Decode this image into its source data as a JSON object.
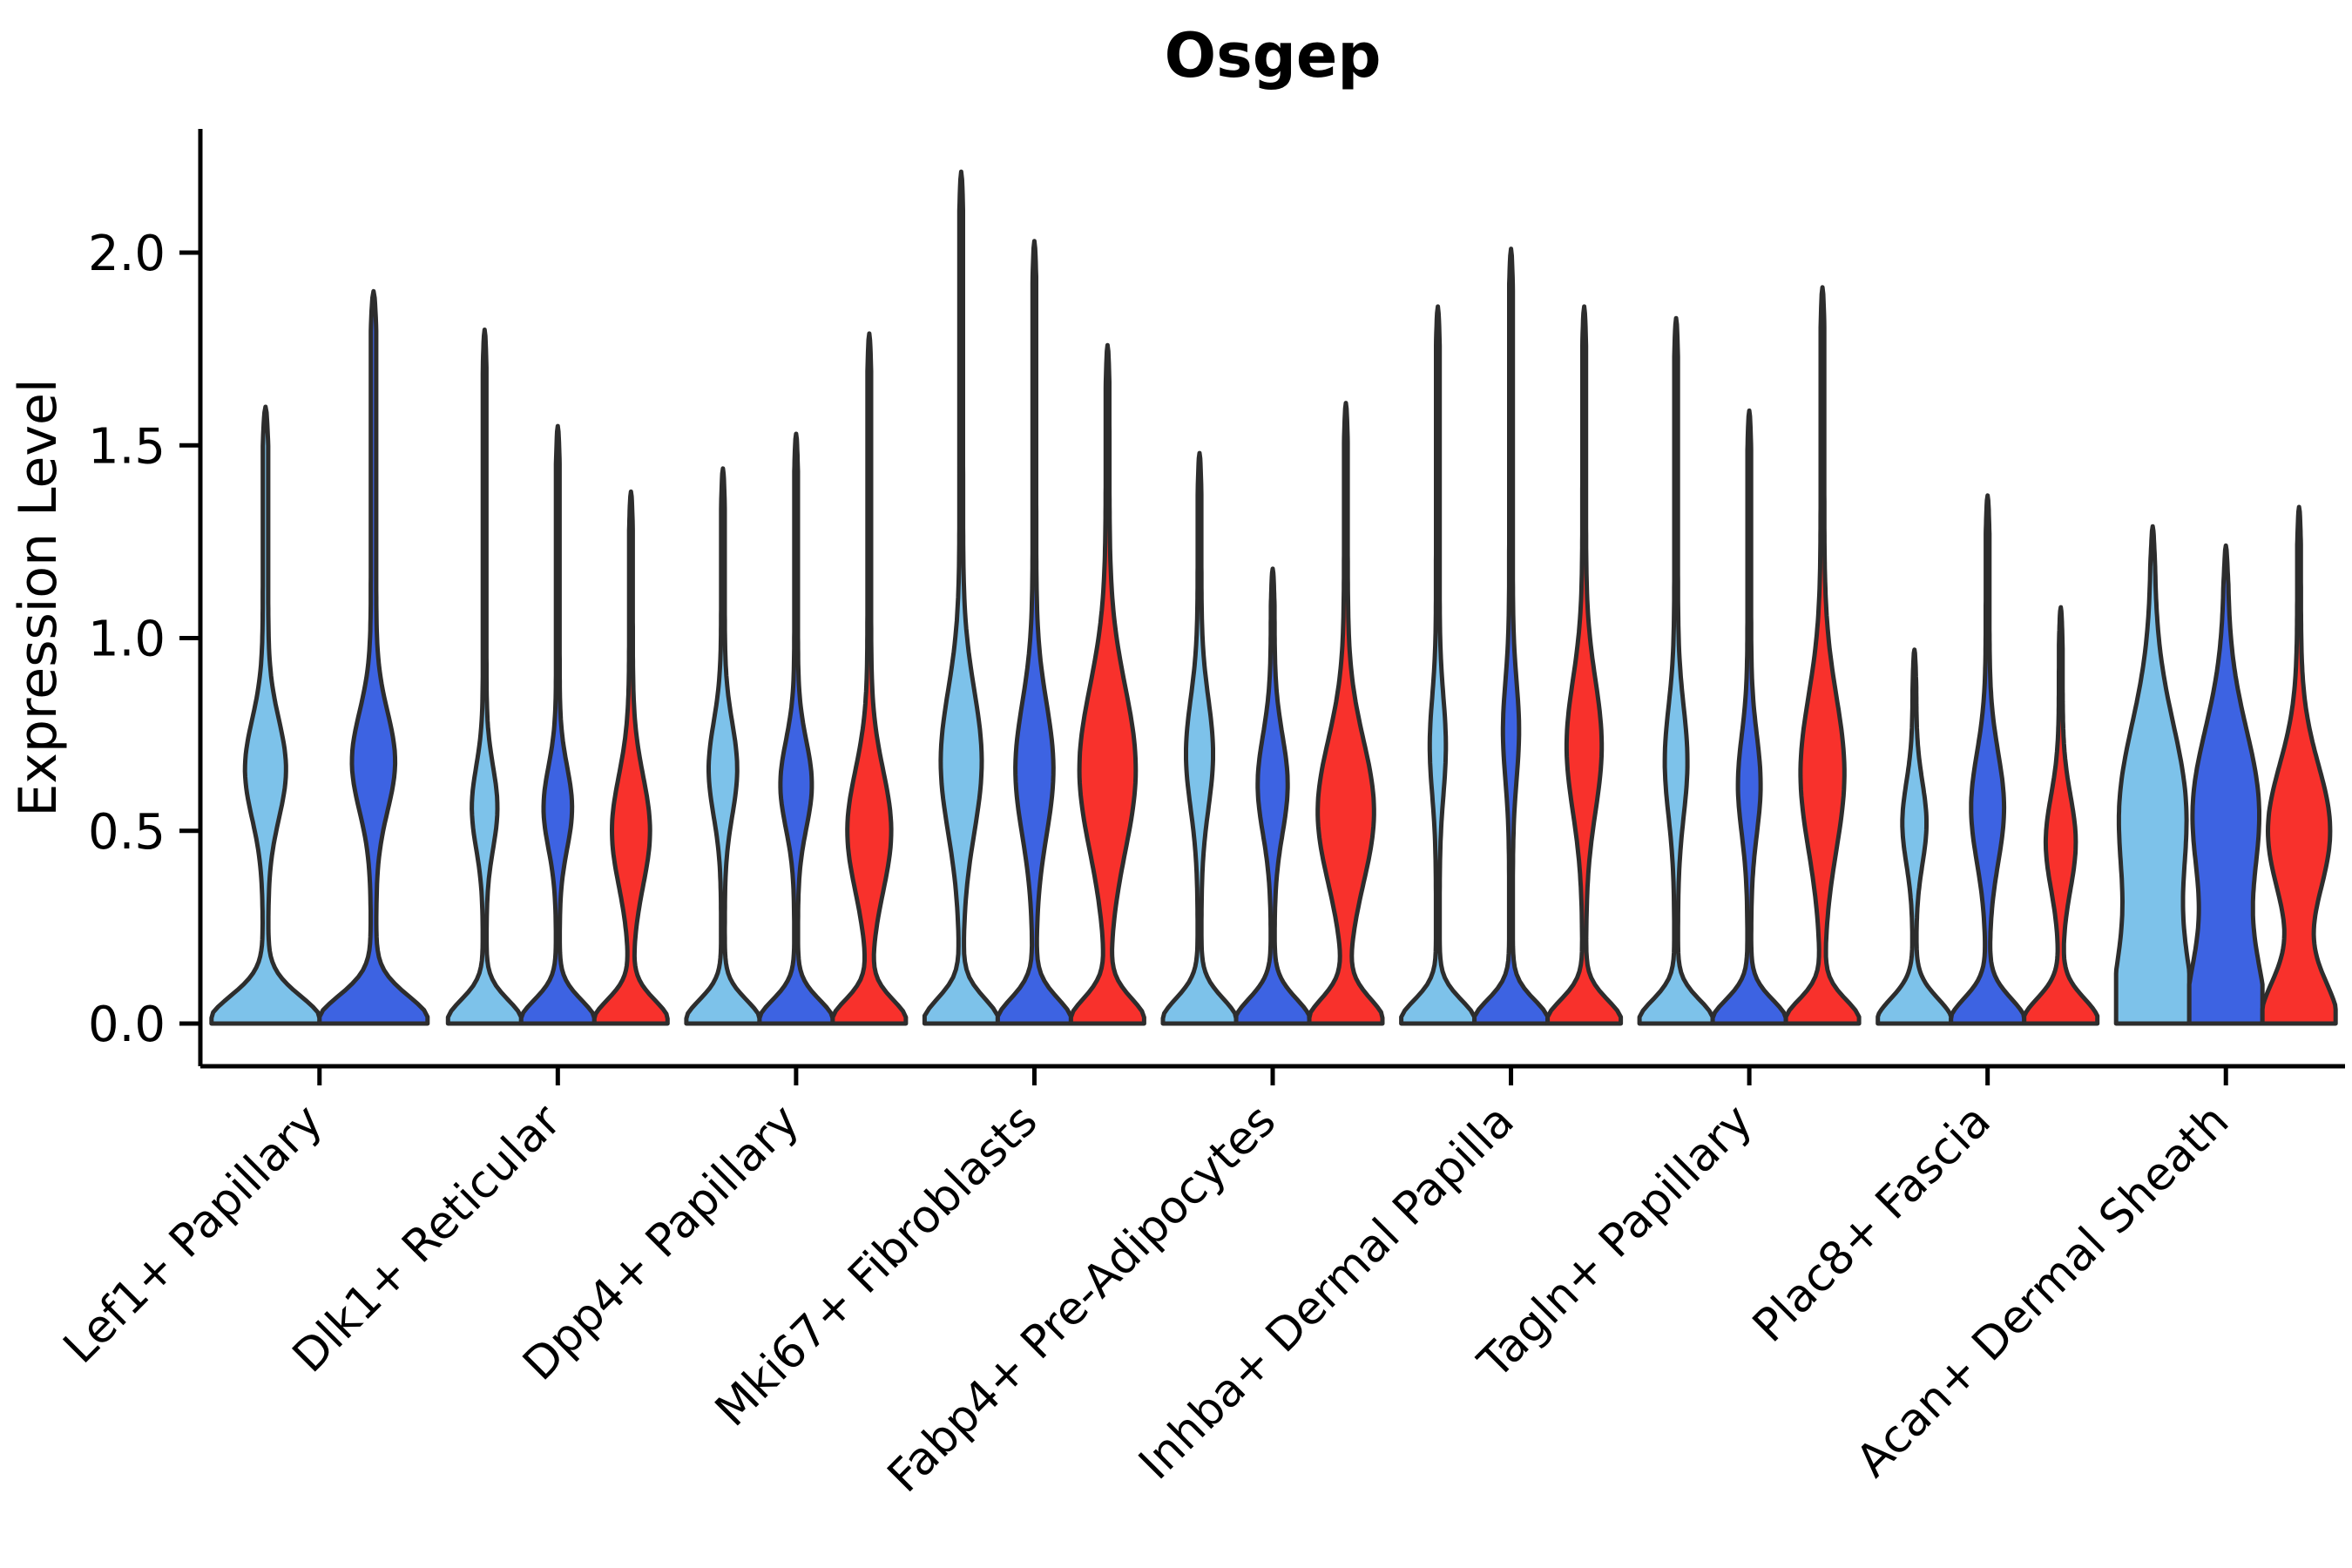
{
  "title": "Osgep",
  "axes": {
    "ylabel": "Expression Level"
  },
  "chart_data": {
    "type": "violin",
    "title": "Osgep",
    "xlabel": "",
    "ylabel": "Expression Level",
    "ylim": [
      -0.11,
      2.32
    ],
    "yticks": [
      0,
      0.5,
      1.0,
      1.5,
      2.0
    ],
    "ytick_labels": [
      "0.0",
      "0.5",
      "1.0",
      "1.5",
      "2.0"
    ],
    "grid": false,
    "legend": "none",
    "outline_color": "#2D2D2D",
    "axis_color": "#000000",
    "series_colors": {
      "light_blue": "#7DC2EA",
      "royal_blue": "#3D63E2",
      "red": "#F8312C"
    },
    "categories": [
      "Lef1+ Papillary",
      "Dlk1+ Reticular",
      "Dpp4+ Papillary",
      "Mki67+ Fibroblasts",
      "Fabp4+ Pre-Adipocytes",
      "Inhba+ Dermal Papilla",
      "Tagln+ Papillary",
      "Plac8+ Fascia",
      "Acan+ Dermal Sheath"
    ],
    "groups": [
      {
        "label": "Lef1+ Papillary",
        "violins": [
          {
            "series": "light_blue",
            "max": 1.6,
            "base_sigma": 0.1,
            "bulge_mu": 0.66,
            "bulge_sigma": 0.18,
            "bulge_amp": 0.33
          },
          {
            "series": "royal_blue",
            "max": 1.9,
            "base_sigma": 0.1,
            "bulge_mu": 0.68,
            "bulge_sigma": 0.18,
            "bulge_amp": 0.35
          }
        ]
      },
      {
        "label": "Dlk1+ Reticular",
        "violins": [
          {
            "series": "light_blue",
            "max": 1.8,
            "base_sigma": 0.085,
            "bulge_mu": 0.56,
            "bulge_sigma": 0.15,
            "bulge_amp": 0.3
          },
          {
            "series": "royal_blue",
            "max": 1.55,
            "base_sigma": 0.085,
            "bulge_mu": 0.56,
            "bulge_sigma": 0.15,
            "bulge_amp": 0.34
          },
          {
            "series": "red",
            "max": 1.38,
            "base_sigma": 0.085,
            "bulge_mu": 0.5,
            "bulge_sigma": 0.2,
            "bulge_amp": 0.47
          }
        ]
      },
      {
        "label": "Dpp4+ Papillary",
        "violins": [
          {
            "series": "light_blue",
            "max": 1.44,
            "base_sigma": 0.085,
            "bulge_mu": 0.66,
            "bulge_sigma": 0.17,
            "bulge_amp": 0.34
          },
          {
            "series": "royal_blue",
            "max": 1.53,
            "base_sigma": 0.085,
            "bulge_mu": 0.62,
            "bulge_sigma": 0.16,
            "bulge_amp": 0.38
          },
          {
            "series": "red",
            "max": 1.79,
            "base_sigma": 0.085,
            "bulge_mu": 0.5,
            "bulge_sigma": 0.22,
            "bulge_amp": 0.55
          }
        ]
      },
      {
        "label": "Mki67+ Fibroblasts",
        "violins": [
          {
            "series": "light_blue",
            "max": 2.21,
            "base_sigma": 0.09,
            "bulge_mu": 0.68,
            "bulge_sigma": 0.26,
            "bulge_amp": 0.51
          },
          {
            "series": "royal_blue",
            "max": 2.03,
            "base_sigma": 0.09,
            "bulge_mu": 0.66,
            "bulge_sigma": 0.24,
            "bulge_amp": 0.47
          },
          {
            "series": "red",
            "max": 1.76,
            "base_sigma": 0.09,
            "bulge_mu": 0.66,
            "bulge_sigma": 0.3,
            "bulge_amp": 0.72
          }
        ]
      },
      {
        "label": "Fabp4+ Pre-Adipocytes",
        "violins": [
          {
            "series": "light_blue",
            "max": 1.48,
            "base_sigma": 0.09,
            "bulge_mu": 0.7,
            "bulge_sigma": 0.2,
            "bulge_amp": 0.32
          },
          {
            "series": "royal_blue",
            "max": 1.18,
            "base_sigma": 0.09,
            "bulge_mu": 0.62,
            "bulge_sigma": 0.18,
            "bulge_amp": 0.36
          },
          {
            "series": "red",
            "max": 1.61,
            "base_sigma": 0.09,
            "bulge_mu": 0.55,
            "bulge_sigma": 0.26,
            "bulge_amp": 0.72
          }
        ]
      },
      {
        "label": "Inhba+ Dermal Papilla",
        "violins": [
          {
            "series": "light_blue",
            "max": 1.86,
            "base_sigma": 0.085,
            "bulge_mu": 0.72,
            "bulge_sigma": 0.18,
            "bulge_amp": 0.17
          },
          {
            "series": "royal_blue",
            "max": 2.01,
            "base_sigma": 0.085,
            "bulge_mu": 0.76,
            "bulge_sigma": 0.18,
            "bulge_amp": 0.17
          },
          {
            "series": "red",
            "max": 1.86,
            "base_sigma": 0.085,
            "bulge_mu": 0.72,
            "bulge_sigma": 0.24,
            "bulge_amp": 0.43
          }
        ]
      },
      {
        "label": "Tagln+ Papillary",
        "violins": [
          {
            "series": "light_blue",
            "max": 1.83,
            "base_sigma": 0.085,
            "bulge_mu": 0.68,
            "bulge_sigma": 0.2,
            "bulge_amp": 0.26
          },
          {
            "series": "royal_blue",
            "max": 1.59,
            "base_sigma": 0.085,
            "bulge_mu": 0.62,
            "bulge_sigma": 0.18,
            "bulge_amp": 0.26
          },
          {
            "series": "red",
            "max": 1.91,
            "base_sigma": 0.085,
            "bulge_mu": 0.65,
            "bulge_sigma": 0.28,
            "bulge_amp": 0.55
          }
        ]
      },
      {
        "label": "Plac8+ Fascia",
        "violins": [
          {
            "series": "light_blue",
            "max": 0.97,
            "base_sigma": 0.09,
            "bulge_mu": 0.52,
            "bulge_sigma": 0.15,
            "bulge_amp": 0.28
          },
          {
            "series": "royal_blue",
            "max": 1.37,
            "base_sigma": 0.09,
            "bulge_mu": 0.56,
            "bulge_sigma": 0.2,
            "bulge_amp": 0.4
          },
          {
            "series": "red",
            "max": 1.08,
            "base_sigma": 0.09,
            "bulge_mu": 0.47,
            "bulge_sigma": 0.17,
            "bulge_amp": 0.36
          }
        ]
      },
      {
        "label": "Acan+ Dermal Sheath",
        "violins": [
          {
            "series": "light_blue",
            "max": 1.29,
            "base_sigma": 0.28,
            "bulge_mu": 0.55,
            "bulge_sigma": 0.32,
            "bulge_amp": 0.85
          },
          {
            "series": "royal_blue",
            "max": 1.24,
            "base_sigma": 0.26,
            "bulge_mu": 0.55,
            "bulge_sigma": 0.3,
            "bulge_amp": 0.85
          },
          {
            "series": "red",
            "max": 1.34,
            "base_sigma": 0.16,
            "bulge_mu": 0.5,
            "bulge_sigma": 0.24,
            "bulge_amp": 0.8
          }
        ]
      }
    ]
  }
}
